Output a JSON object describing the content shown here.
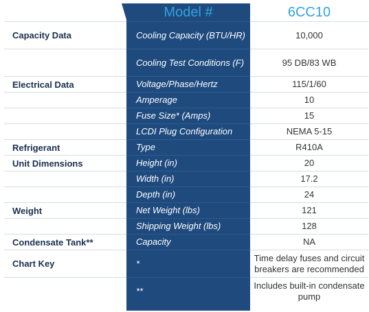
{
  "header": {
    "model_label": "Model #",
    "model_value": "6CC10"
  },
  "rows": [
    {
      "section": "Capacity Data",
      "attribute": "Cooling Capacity (BTU/HR)",
      "value": "10,000"
    },
    {
      "section": "",
      "attribute": "Cooling Test Conditions (F)",
      "value": "95 DB/83 WB"
    },
    {
      "section": "Electrical Data",
      "attribute": "Voltage/Phase/Hertz",
      "value": "115/1/60"
    },
    {
      "section": "",
      "attribute": "Amperage",
      "value": "10"
    },
    {
      "section": "",
      "attribute": "Fuse Size* (Amps)",
      "value": "15"
    },
    {
      "section": "",
      "attribute": "LCDI Plug Configuration",
      "value": "NEMA 5-15"
    },
    {
      "section": "Refrigerant",
      "attribute": "Type",
      "value": "R410A"
    },
    {
      "section": "Unit Dimensions",
      "attribute": "Height (in)",
      "value": "20"
    },
    {
      "section": "",
      "attribute": "Width (in)",
      "value": "17.2"
    },
    {
      "section": "",
      "attribute": "Depth (in)",
      "value": "24"
    },
    {
      "section": "Weight",
      "attribute": "Net Weight (lbs)",
      "value": "121"
    },
    {
      "section": "",
      "attribute": "Shipping Weight (lbs)",
      "value": "128"
    },
    {
      "section": "Condensate Tank**",
      "attribute": "Capacity",
      "value": "NA"
    },
    {
      "section": "Chart Key",
      "attribute": "*",
      "value": "Time delay fuses and circuit breakers are recommended"
    },
    {
      "section": "",
      "attribute": "**",
      "value": "Includes built-in condensate pump"
    }
  ],
  "colors": {
    "band": "#1f4a7e",
    "accent": "#2fa4df",
    "label": "#1a2f4f"
  }
}
